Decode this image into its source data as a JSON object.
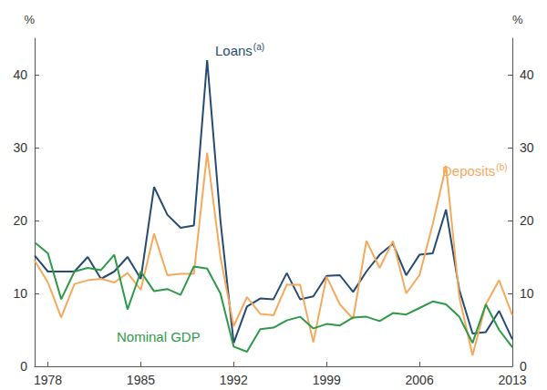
{
  "chart_data": {
    "type": "line",
    "ylabel": "%",
    "y2label": "%",
    "x": [
      1977,
      1978,
      1979,
      1980,
      1981,
      1982,
      1983,
      1984,
      1985,
      1986,
      1987,
      1988,
      1989,
      1990,
      1991,
      1992,
      1993,
      1994,
      1995,
      1996,
      1997,
      1998,
      1999,
      2000,
      2001,
      2002,
      2003,
      2004,
      2005,
      2006,
      2007,
      2008,
      2009,
      2010,
      2011,
      2012,
      2013
    ],
    "xlim": [
      1977,
      2013
    ],
    "xticks": [
      1978,
      1985,
      1992,
      1999,
      2006,
      2013
    ],
    "ylim": [
      0,
      45
    ],
    "yticks": [
      0,
      10,
      20,
      30,
      40
    ],
    "y2lim": [
      0,
      45
    ],
    "y2ticks": [
      0,
      10,
      20,
      30,
      40
    ],
    "grid": false,
    "series": [
      {
        "name": "Loans",
        "note": "(a)",
        "color": "#264b70",
        "values": [
          15.2,
          13,
          13,
          13,
          15,
          12,
          13,
          15,
          12,
          24.6,
          20.8,
          19,
          19.3,
          42,
          20,
          3.2,
          8.2,
          9.3,
          9.2,
          12.8,
          9.2,
          9.6,
          12.4,
          12.5,
          10.2,
          13,
          15.3,
          16.8,
          12.5,
          15.3,
          15.5,
          21.5,
          10.5,
          4.5,
          4.7,
          7.6,
          3.7
        ]
      },
      {
        "name": "Deposits",
        "note": "(b)",
        "color": "#f5a95c",
        "values": [
          14.5,
          11.5,
          6.7,
          11.3,
          11.8,
          12,
          11.5,
          12.8,
          10.5,
          18.2,
          12.5,
          12.7,
          12.7,
          29.3,
          15,
          5.5,
          9.5,
          7.2,
          7,
          11.2,
          11.2,
          3.3,
          12.3,
          8.5,
          6.5,
          17.2,
          13.5,
          17.2,
          10,
          12.5,
          19.5,
          27.5,
          9.5,
          1.5,
          8.5,
          11.8,
          7
        ]
      },
      {
        "name": "Nominal GDP",
        "color": "#2e9a47",
        "values": [
          17,
          15.5,
          9.2,
          13,
          13.5,
          13.2,
          15.3,
          7.8,
          13,
          10.3,
          10.6,
          9.8,
          13.7,
          13.4,
          10,
          2.7,
          2,
          5.1,
          5.3,
          6.3,
          6.8,
          5.2,
          5.8,
          5.6,
          6.7,
          6.8,
          6.2,
          7.3,
          7.1,
          8,
          8.9,
          8.5,
          6.8,
          3.2,
          8.5,
          5,
          2.6
        ]
      }
    ]
  }
}
